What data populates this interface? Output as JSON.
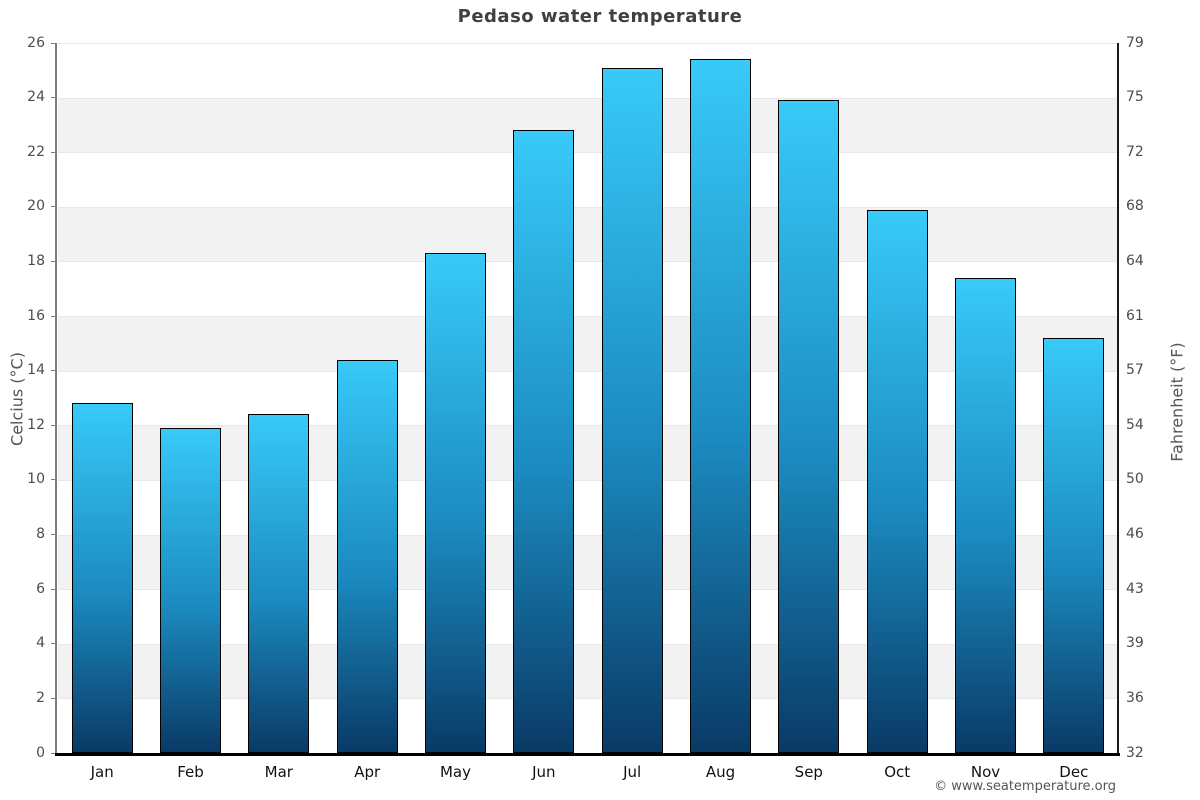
{
  "title": "Pedaso water temperature",
  "footer": "© www.seatemperature.org",
  "chart_data": {
    "type": "bar",
    "title": "Pedaso water temperature",
    "categories": [
      "Jan",
      "Feb",
      "Mar",
      "Apr",
      "May",
      "Jun",
      "Jul",
      "Aug",
      "Sep",
      "Oct",
      "Nov",
      "Dec"
    ],
    "values": [
      12.8,
      11.9,
      12.4,
      14.4,
      18.3,
      22.8,
      25.1,
      25.4,
      23.9,
      19.9,
      17.4,
      15.2
    ],
    "unit": "°C",
    "xlabel": "",
    "ylabel_left": "Celcius (°C)",
    "ylabel_right": "Fahrenheit (°F)",
    "ylim": [
      0,
      26
    ],
    "ytick_step": 2,
    "yticks_left": [
      "0",
      "2",
      "4",
      "6",
      "8",
      "10",
      "12",
      "14",
      "16",
      "18",
      "20",
      "22",
      "24",
      "26"
    ],
    "yticks_right": [
      "32",
      "36",
      "39",
      "43",
      "46",
      "50",
      "54",
      "57",
      "61",
      "64",
      "68",
      "72",
      "75",
      "79"
    ],
    "grid": "horizontal-alternating-bands",
    "legend": "none",
    "colors": {
      "bar_top": "#38caf8",
      "bar_mid": "#1b8abf",
      "bar_bottom": "#0a3a66",
      "bar_border": "#000000",
      "band_gray": "#f2f2f2",
      "band_white": "#ffffff",
      "gridline": "#e7e7e7",
      "title_text": "#404040",
      "tick_text": "#4d4d4d",
      "month_text": "#111111",
      "axis_label_text": "#555555",
      "footer_text": "#555555",
      "left_spine": "#7d7d7d",
      "right_spine": "#1a1a1a",
      "bottom_axis": "#000000"
    }
  }
}
